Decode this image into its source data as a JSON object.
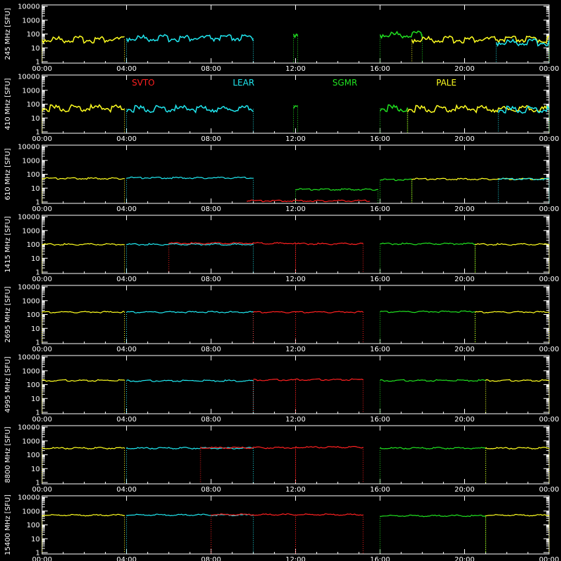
{
  "chart_data": {
    "type": "line",
    "x_unit_label": "",
    "x_range": [
      "00:00",
      "00:00"
    ],
    "x_tick_labels": [
      "00:00",
      "04:00",
      "08:00",
      "12:00",
      "16:00",
      "20:00",
      "00:00"
    ],
    "y_scale": "log",
    "y_range": [
      1,
      10000
    ],
    "y_tick_labels": [
      "1",
      "10",
      "100",
      "1000",
      "10000"
    ],
    "legend": [
      {
        "name": "SVTO",
        "color": "#ff2020"
      },
      {
        "name": "LEAR",
        "color": "#20e8f0"
      },
      {
        "name": "SGMR",
        "color": "#20e020"
      },
      {
        "name": "PALE",
        "color": "#ffff20"
      }
    ],
    "panels": [
      {
        "ylabel": "245 MHz [SFU]",
        "segments": [
          {
            "station": "PALE",
            "start": 0.0,
            "end": 3.9,
            "value": 40
          },
          {
            "station": "LEAR",
            "start": 4.0,
            "end": 10.0,
            "value": 50
          },
          {
            "station": "SGMR",
            "start": 11.9,
            "end": 12.1,
            "value": 100
          },
          {
            "station": "SGMR",
            "start": 16.0,
            "end": 18.0,
            "value": 90
          },
          {
            "station": "PALE",
            "start": 17.5,
            "end": 24.0,
            "value": 40
          },
          {
            "station": "LEAR",
            "start": 21.5,
            "end": 24.0,
            "value": 25
          }
        ]
      },
      {
        "ylabel": "410 MHz [SFU]",
        "segments": [
          {
            "station": "PALE",
            "start": 0.0,
            "end": 3.9,
            "value": 50
          },
          {
            "station": "LEAR",
            "start": 4.0,
            "end": 10.0,
            "value": 45
          },
          {
            "station": "SGMR",
            "start": 11.9,
            "end": 12.1,
            "value": 80
          },
          {
            "station": "SGMR",
            "start": 16.0,
            "end": 17.3,
            "value": 50
          },
          {
            "station": "PALE",
            "start": 17.3,
            "end": 24.0,
            "value": 45
          },
          {
            "station": "LEAR",
            "start": 21.6,
            "end": 24.0,
            "value": 40
          }
        ]
      },
      {
        "ylabel": "610 MHz [SFU]",
        "segments": [
          {
            "station": "PALE",
            "start": 0.0,
            "end": 3.9,
            "value": 50
          },
          {
            "station": "LEAR",
            "start": 4.0,
            "end": 10.0,
            "value": 55
          },
          {
            "station": "SVTO",
            "start": 9.7,
            "end": 15.5,
            "value": 1.2
          },
          {
            "station": "SGMR",
            "start": 12.0,
            "end": 15.9,
            "value": 8
          },
          {
            "station": "SGMR",
            "start": 16.0,
            "end": 17.5,
            "value": 40
          },
          {
            "station": "PALE",
            "start": 17.5,
            "end": 24.0,
            "value": 45
          },
          {
            "station": "LEAR",
            "start": 21.6,
            "end": 24.0,
            "value": 45
          }
        ]
      },
      {
        "ylabel": "1415 MHz [SFU]",
        "segments": [
          {
            "station": "PALE",
            "start": 0.0,
            "end": 3.9,
            "value": 100
          },
          {
            "station": "LEAR",
            "start": 4.0,
            "end": 10.0,
            "value": 100
          },
          {
            "station": "SVTO",
            "start": 6.0,
            "end": 12.0,
            "value": 120
          },
          {
            "station": "SVTO",
            "start": 12.0,
            "end": 15.2,
            "value": 110
          },
          {
            "station": "SGMR",
            "start": 16.0,
            "end": 20.5,
            "value": 110
          },
          {
            "station": "PALE",
            "start": 20.5,
            "end": 24.0,
            "value": 100
          }
        ]
      },
      {
        "ylabel": "2695 MHz [SFU]",
        "segments": [
          {
            "station": "PALE",
            "start": 0.0,
            "end": 3.9,
            "value": 150
          },
          {
            "station": "LEAR",
            "start": 4.0,
            "end": 10.0,
            "value": 150
          },
          {
            "station": "SVTO",
            "start": 10.0,
            "end": 12.0,
            "value": 150
          },
          {
            "station": "SVTO",
            "start": 12.0,
            "end": 15.2,
            "value": 150
          },
          {
            "station": "SGMR",
            "start": 16.0,
            "end": 20.5,
            "value": 160
          },
          {
            "station": "PALE",
            "start": 20.5,
            "end": 24.0,
            "value": 150
          }
        ]
      },
      {
        "ylabel": "4995 MHz [SFU]",
        "segments": [
          {
            "station": "PALE",
            "start": 0.0,
            "end": 3.9,
            "value": 200
          },
          {
            "station": "LEAR",
            "start": 4.0,
            "end": 10.0,
            "value": 190
          },
          {
            "station": "SVTO",
            "start": 10.0,
            "end": 12.0,
            "value": 220
          },
          {
            "station": "SVTO",
            "start": 12.0,
            "end": 15.2,
            "value": 230
          },
          {
            "station": "SGMR",
            "start": 16.0,
            "end": 21.0,
            "value": 200
          },
          {
            "station": "PALE",
            "start": 21.0,
            "end": 24.0,
            "value": 200
          }
        ]
      },
      {
        "ylabel": "8800 MHz [SFU]",
        "segments": [
          {
            "station": "PALE",
            "start": 0.0,
            "end": 3.9,
            "value": 300
          },
          {
            "station": "LEAR",
            "start": 4.0,
            "end": 10.0,
            "value": 300
          },
          {
            "station": "SVTO",
            "start": 7.5,
            "end": 12.0,
            "value": 320
          },
          {
            "station": "SVTO",
            "start": 12.0,
            "end": 15.2,
            "value": 350
          },
          {
            "station": "SGMR",
            "start": 16.0,
            "end": 21.0,
            "value": 300
          },
          {
            "station": "PALE",
            "start": 21.0,
            "end": 24.0,
            "value": 300
          }
        ]
      },
      {
        "ylabel": "15400 MHz [SFU]",
        "segments": [
          {
            "station": "PALE",
            "start": 0.0,
            "end": 3.9,
            "value": 500
          },
          {
            "station": "LEAR",
            "start": 4.0,
            "end": 10.0,
            "value": 520
          },
          {
            "station": "SVTO",
            "start": 8.0,
            "end": 12.0,
            "value": 550
          },
          {
            "station": "SVTO",
            "start": 12.0,
            "end": 15.2,
            "value": 550
          },
          {
            "station": "SGMR",
            "start": 16.0,
            "end": 21.0,
            "value": 450
          },
          {
            "station": "PALE",
            "start": 21.0,
            "end": 24.0,
            "value": 500
          }
        ]
      }
    ]
  }
}
